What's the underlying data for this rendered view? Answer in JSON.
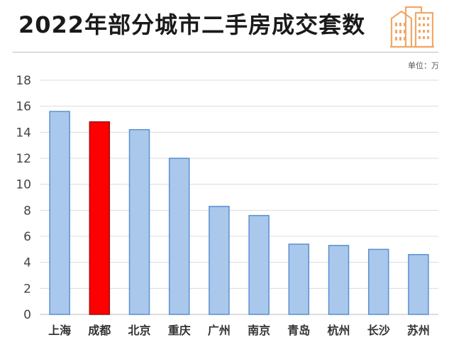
{
  "header": {
    "title": "2022年部分城市二手房成交套数",
    "unit": "单位：万"
  },
  "colors": {
    "bar_default": "#a9c8ec",
    "bar_default_stroke": "#5b8fd0",
    "bar_highlight": "#ff0000",
    "bar_highlight_stroke": "#9c1010",
    "logo": "#f0a868",
    "grid": "#dcdcdc"
  },
  "icons": {
    "logo": "building-icon"
  },
  "chart_data": {
    "type": "bar",
    "categories": [
      "上海",
      "成都",
      "北京",
      "重庆",
      "广州",
      "南京",
      "青岛",
      "杭州",
      "长沙",
      "苏州"
    ],
    "values": [
      15.6,
      14.8,
      14.2,
      12.0,
      8.3,
      7.6,
      5.4,
      5.3,
      5.0,
      4.6
    ],
    "highlight": "成都",
    "ylim": [
      0,
      18
    ],
    "yticks": [
      0,
      2,
      4,
      6,
      8,
      10,
      12,
      14,
      16,
      18
    ],
    "title": "2022年部分城市二手房成交套数",
    "xlabel": "",
    "ylabel": "",
    "grid": true
  }
}
